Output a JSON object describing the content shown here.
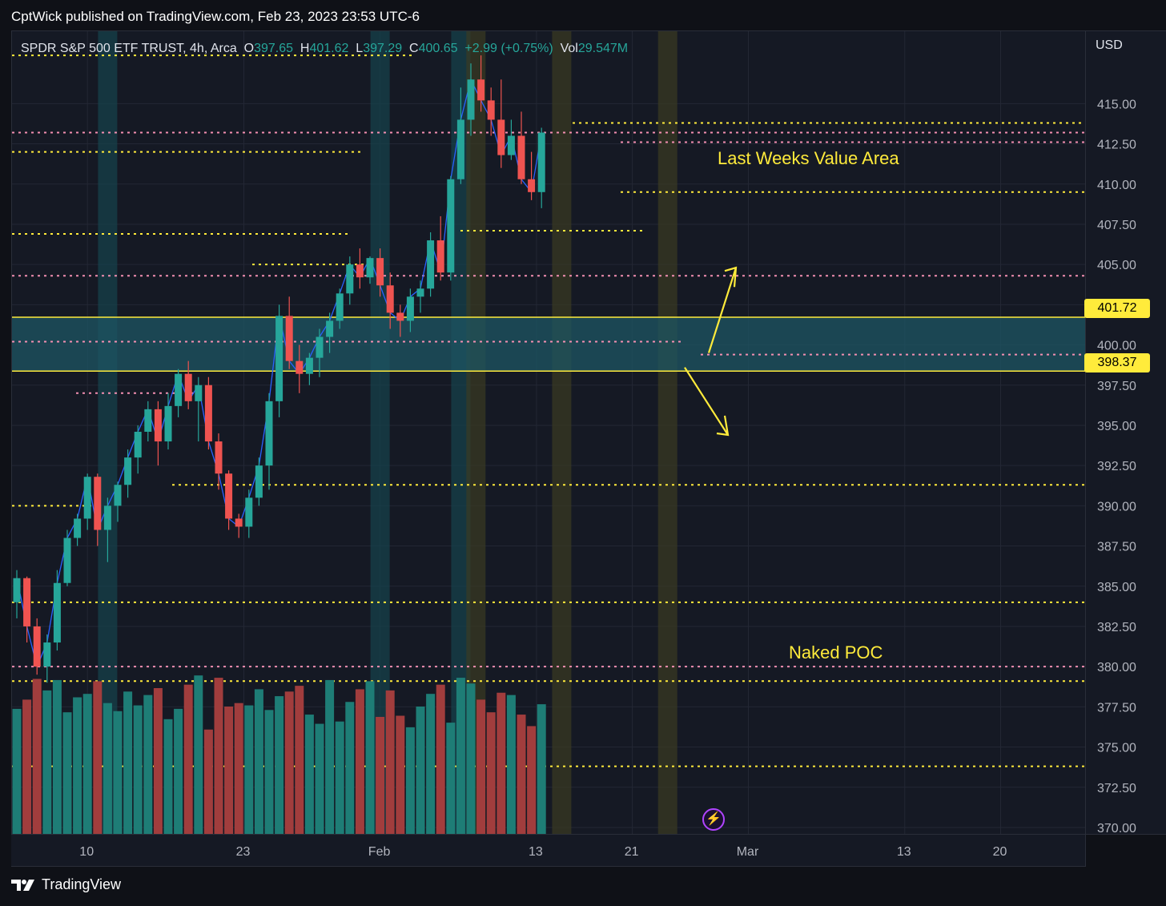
{
  "header": {
    "published": "CptWick published on TradingView.com, Feb 23, 2023 23:53 UTC-6"
  },
  "legend": {
    "symbol": "SPDR S&P 500 ETF TRUST, 4h, Arca",
    "open_label": "O",
    "open": "397.65",
    "high_label": "H",
    "high": "401.62",
    "low_label": "L",
    "low": "397.29",
    "close_label": "C",
    "close": "400.65",
    "change": "+2.99 (+0.75%)",
    "vol_label": "Vol",
    "vol": "29.547M"
  },
  "currency": "USD",
  "price_tags": {
    "upper": "401.72",
    "lower": "398.37"
  },
  "annotations": {
    "value_area": "Last Weeks Value Area",
    "naked_poc": "Naked POC"
  },
  "footer": {
    "brand": "TradingView"
  },
  "colors": {
    "up": "#26a69a",
    "down": "#ef5350",
    "accent": "#ffeb3b",
    "poc": "#f48fb1",
    "volume_up": "#1e7d76",
    "volume_down": "#a13d3d",
    "zone": "#1d5663"
  },
  "chart_data": {
    "type": "candlestick",
    "title": "SPDR S&P 500 ETF TRUST, 4h, Arca",
    "ylabel": "USD",
    "ylim": [
      369.5,
      419.5
    ],
    "ticks_y": [
      "370.00",
      "372.50",
      "375.00",
      "377.50",
      "380.00",
      "382.50",
      "385.00",
      "387.50",
      "390.00",
      "392.50",
      "395.00",
      "397.50",
      "400.00",
      "402.50",
      "405.00",
      "407.50",
      "410.00",
      "412.50",
      "415.00"
    ],
    "ticks_x": [
      {
        "label": "10",
        "index": 7
      },
      {
        "label": "23",
        "index": 22.5
      },
      {
        "label": "Feb",
        "index": 36
      },
      {
        "label": "13",
        "index": 51.5
      },
      {
        "label": "21",
        "index": 61
      },
      {
        "label": "Mar",
        "index": 72.5
      },
      {
        "label": "13",
        "index": 88
      },
      {
        "label": "20",
        "index": 97.5
      }
    ],
    "candles": [
      [
        384.0,
        386.0,
        383.0,
        385.5
      ],
      [
        385.5,
        385.6,
        381.5,
        382.5
      ],
      [
        382.5,
        383.0,
        379.5,
        380.0
      ],
      [
        380.0,
        382.0,
        379.0,
        381.5
      ],
      [
        381.5,
        386.0,
        381.0,
        385.2
      ],
      [
        385.2,
        388.5,
        385.0,
        388.0
      ],
      [
        388.0,
        389.5,
        387.5,
        389.2
      ],
      [
        389.2,
        392.0,
        388.5,
        391.8
      ],
      [
        391.8,
        392.0,
        387.5,
        388.5
      ],
      [
        388.5,
        390.5,
        386.5,
        390.0
      ],
      [
        390.0,
        391.5,
        389.0,
        391.3
      ],
      [
        391.3,
        393.5,
        390.5,
        393.0
      ],
      [
        393.0,
        395.0,
        392.0,
        394.6
      ],
      [
        394.6,
        396.5,
        394.0,
        396.0
      ],
      [
        396.0,
        396.5,
        392.5,
        394.0
      ],
      [
        394.0,
        397.0,
        393.5,
        396.2
      ],
      [
        396.2,
        398.5,
        395.5,
        398.2
      ],
      [
        398.2,
        399.0,
        396.0,
        396.5
      ],
      [
        396.5,
        398.0,
        394.0,
        397.5
      ],
      [
        397.5,
        398.0,
        393.5,
        394.0
      ],
      [
        394.0,
        394.5,
        391.0,
        392.0
      ],
      [
        392.0,
        392.2,
        388.5,
        389.2
      ],
      [
        389.2,
        389.5,
        388.0,
        388.7
      ],
      [
        388.7,
        391.0,
        388.0,
        390.5
      ],
      [
        390.5,
        393.0,
        390.0,
        392.5
      ],
      [
        392.5,
        397.0,
        391.0,
        396.5
      ],
      [
        396.5,
        402.5,
        395.5,
        401.8
      ],
      [
        401.8,
        403.0,
        398.5,
        399.0
      ],
      [
        399.0,
        400.0,
        397.0,
        398.2
      ],
      [
        398.2,
        399.5,
        397.5,
        399.2
      ],
      [
        399.2,
        401.0,
        398.0,
        400.5
      ],
      [
        400.5,
        402.0,
        399.5,
        401.5
      ],
      [
        401.5,
        403.5,
        401.0,
        403.2
      ],
      [
        403.2,
        405.5,
        402.5,
        405.0
      ],
      [
        405.0,
        406.0,
        403.5,
        404.2
      ],
      [
        404.2,
        405.5,
        403.8,
        405.4
      ],
      [
        405.4,
        406.0,
        403.0,
        403.7
      ],
      [
        403.7,
        404.5,
        401.0,
        402.0
      ],
      [
        402.0,
        402.5,
        400.5,
        401.5
      ],
      [
        401.5,
        403.5,
        400.8,
        403.0
      ],
      [
        403.0,
        404.0,
        402.0,
        403.5
      ],
      [
        403.5,
        407.0,
        403.0,
        406.5
      ],
      [
        406.5,
        408.0,
        404.0,
        404.5
      ],
      [
        404.5,
        410.5,
        404.0,
        410.3
      ],
      [
        410.3,
        416.0,
        410.0,
        414.0
      ],
      [
        414.0,
        417.5,
        413.0,
        416.5
      ],
      [
        416.5,
        418.0,
        414.5,
        415.2
      ],
      [
        415.2,
        416.0,
        413.0,
        414.0
      ],
      [
        414.0,
        416.5,
        411.0,
        411.8
      ],
      [
        411.8,
        414.0,
        411.5,
        413.0
      ],
      [
        413.0,
        414.5,
        410.0,
        410.3
      ],
      [
        410.3,
        412.0,
        409.0,
        409.5
      ],
      [
        409.5,
        413.5,
        408.5,
        413.2
      ]
    ],
    "volume": [
      1.1,
      1.18,
      1.36,
      1.26,
      1.35,
      1.07,
      1.2,
      1.23,
      1.34,
      1.15,
      1.08,
      1.25,
      1.13,
      1.22,
      1.28,
      1.01,
      1.1,
      1.31,
      1.39,
      0.92,
      1.37,
      1.12,
      1.15,
      1.13,
      1.27,
      1.09,
      1.21,
      1.25,
      1.3,
      1.05,
      0.97,
      1.35,
      0.99,
      1.16,
      1.27,
      1.34,
      1.03,
      1.26,
      1.04,
      0.94,
      1.12,
      1.23,
      1.31,
      0.98,
      1.37,
      1.32,
      1.18,
      1.07,
      1.24,
      1.22,
      1.05,
      0.95,
      1.14
    ]
  }
}
